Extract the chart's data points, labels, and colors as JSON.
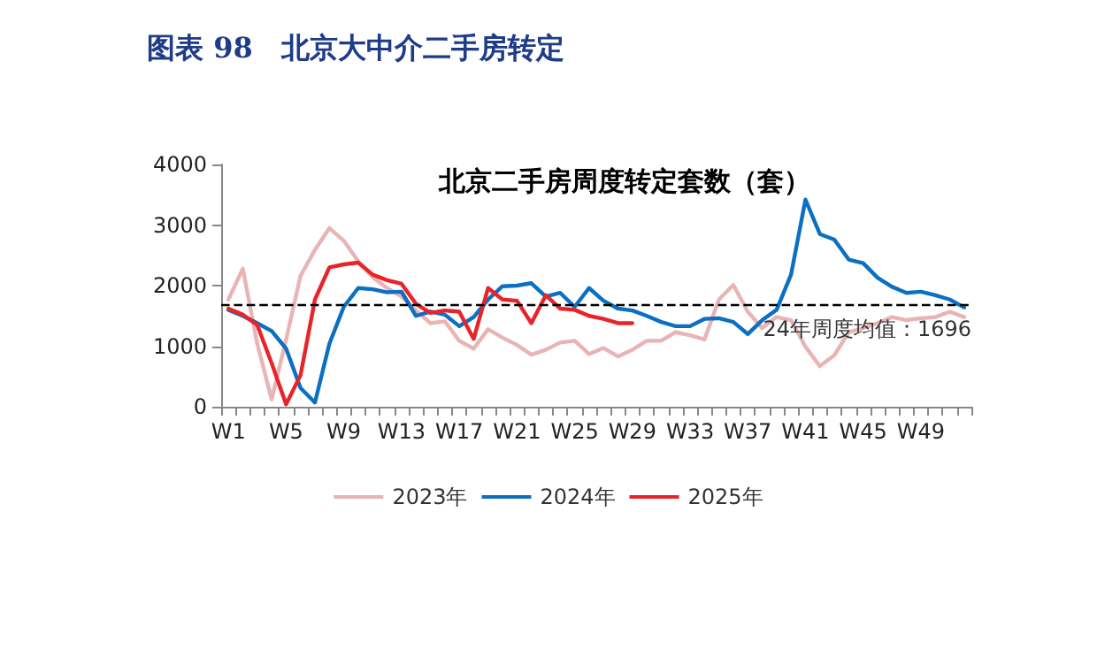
{
  "chart_data": {
    "type": "line",
    "title": "图表 98　北京大中介二手房转定",
    "subtitle": "北京二手房周度转定套数（套）",
    "categories": [
      "W1",
      null,
      null,
      null,
      "W5",
      null,
      null,
      null,
      "W9",
      null,
      null,
      null,
      "W13",
      null,
      null,
      null,
      "W17",
      null,
      null,
      null,
      "W21",
      null,
      null,
      null,
      "W25",
      null,
      null,
      null,
      "W29",
      null,
      null,
      null,
      "W33",
      null,
      null,
      null,
      "W37",
      null,
      null,
      null,
      "W41",
      null,
      null,
      null,
      "W45",
      null,
      null,
      null,
      "W49",
      null,
      null,
      null
    ],
    "series": [
      {
        "name": "2023年",
        "color": "#e8b4b4",
        "values": [
          1770,
          2280,
          1040,
          120,
          1110,
          2160,
          2590,
          2950,
          2740,
          2400,
          2140,
          1960,
          1820,
          1590,
          1380,
          1410,
          1090,
          960,
          1280,
          1140,
          1020,
          860,
          940,
          1060,
          1090,
          870,
          970,
          830,
          940,
          1090,
          1090,
          1230,
          1180,
          1110,
          1770,
          2010,
          1570,
          1300,
          1480,
          1430,
          990,
          670,
          850,
          1230,
          1300,
          1380,
          1480,
          1430,
          1460,
          1480,
          1570,
          1480
        ]
      },
      {
        "name": "2024年",
        "color": "#0d6fc2",
        "values": [
          1600,
          1500,
          1380,
          1250,
          960,
          310,
          70,
          1040,
          1650,
          1960,
          1940,
          1890,
          1900,
          1500,
          1570,
          1520,
          1330,
          1480,
          1770,
          1990,
          2000,
          2040,
          1820,
          1880,
          1650,
          1960,
          1750,
          1620,
          1590,
          1500,
          1400,
          1330,
          1330,
          1450,
          1460,
          1400,
          1200,
          1430,
          1600,
          2180,
          3420,
          2850,
          2760,
          2430,
          2370,
          2130,
          1980,
          1880,
          1900,
          1840,
          1770,
          1640
        ]
      },
      {
        "name": "2025年",
        "color": "#e8242b",
        "values": [
          1620,
          1520,
          1350,
          720,
          40,
          520,
          1770,
          2300,
          2350,
          2380,
          2180,
          2090,
          2030,
          1700,
          1550,
          1590,
          1570,
          1120,
          1960,
          1770,
          1750,
          1380,
          1840,
          1620,
          1600,
          1500,
          1450,
          1380,
          1380,
          null,
          null,
          null,
          null,
          null,
          null,
          null,
          null,
          null,
          null,
          null,
          null,
          null,
          null,
          null,
          null,
          null,
          null,
          null,
          null,
          null,
          null,
          null
        ]
      }
    ],
    "ylim": [
      0,
      4000
    ],
    "yticks": [
      0,
      1000,
      2000,
      3000,
      4000
    ],
    "ref_lines": [
      {
        "axis": "y",
        "value": 1696,
        "label": "24年周度均值：1696",
        "color": "#000000",
        "line_style": "dashed"
      }
    ],
    "grid": false,
    "legend": "bottom",
    "marker": "none",
    "line_style": "solid"
  }
}
